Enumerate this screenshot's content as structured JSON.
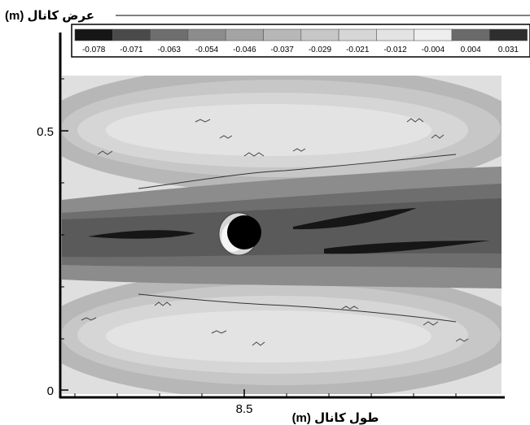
{
  "chart_data": {
    "type": "heatmap",
    "title": "",
    "ylabel": "(m) عرض کانال",
    "xlabel": "(m) طول کانال",
    "x_ticks": [
      {
        "value": 8.5,
        "label": "8.5"
      }
    ],
    "y_ticks": [
      {
        "value": 0,
        "label": "0"
      },
      {
        "value": 0.5,
        "label": "0.5"
      }
    ],
    "ylim": [
      0,
      0.62
    ],
    "legend": {
      "placement": "top",
      "levels": [
        "-0.078",
        "-0.071",
        "-0.063",
        "-0.054",
        "-0.046",
        "-0.037",
        "-0.029",
        "-0.021",
        "-0.012",
        "-0.004",
        "0.004",
        "0.031"
      ],
      "colors": [
        "#161616",
        "#4a4a4a",
        "#6e6e6e",
        "#8c8c8c",
        "#a4a4a4",
        "#b7b7b7",
        "#c7c7c7",
        "#d6d6d6",
        "#e3e3e3",
        "#eeeeee",
        "#6a6a6a",
        "#2e2e2e"
      ]
    },
    "obstacle": {
      "shape": "cylinder",
      "color": "#000000"
    },
    "grid": false
  }
}
